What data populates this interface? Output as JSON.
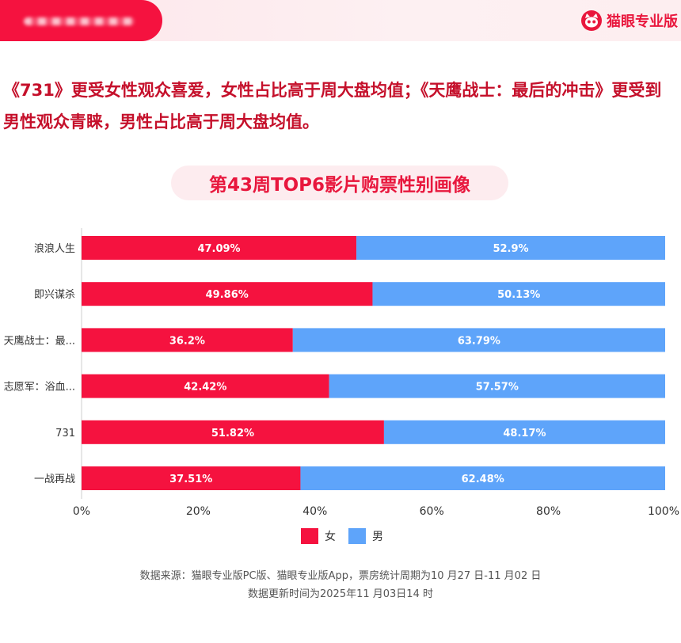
{
  "brand": {
    "name": "猫眼专业版"
  },
  "headline": "《731》更受女性观众喜爱，女性占比高于周大盘均值；《天鹰战士：最后的冲击》更受到男性观众青睐，男性占比高于周大盘均值。",
  "colors": {
    "female": "#f5123f",
    "male": "#5ea4fa",
    "accent": "#e8173d"
  },
  "chart_data": {
    "type": "bar",
    "stacked": true,
    "orientation": "horizontal",
    "title": "第43周TOP6影片购票性别画像",
    "categories": [
      "浪浪人生",
      "即兴谋杀",
      "天鹰战士：最...",
      "志愿军：浴血...",
      "731",
      "一战再战"
    ],
    "series": [
      {
        "name": "女",
        "values": [
          47.09,
          49.86,
          36.2,
          42.42,
          51.82,
          37.51
        ],
        "labels": [
          "47.09%",
          "49.86%",
          "36.2%",
          "42.42%",
          "51.82%",
          "37.51%"
        ]
      },
      {
        "name": "男",
        "values": [
          52.9,
          50.13,
          63.79,
          57.57,
          48.17,
          62.48
        ],
        "labels": [
          "52.9%",
          "50.13%",
          "63.79%",
          "57.57%",
          "48.17%",
          "62.48%"
        ]
      }
    ],
    "xlim": [
      0,
      100
    ],
    "xticks": [
      "0%",
      "20%",
      "40%",
      "60%",
      "80%",
      "100%"
    ],
    "legend_position": "bottom-center"
  },
  "footer": {
    "line1": "数据来源：猫眼专业版PC版、猫眼专业版App，票房统计周期为10 月27 日-11 月02 日",
    "line2": "数据更新时间为2025年11 月03日14 时"
  }
}
